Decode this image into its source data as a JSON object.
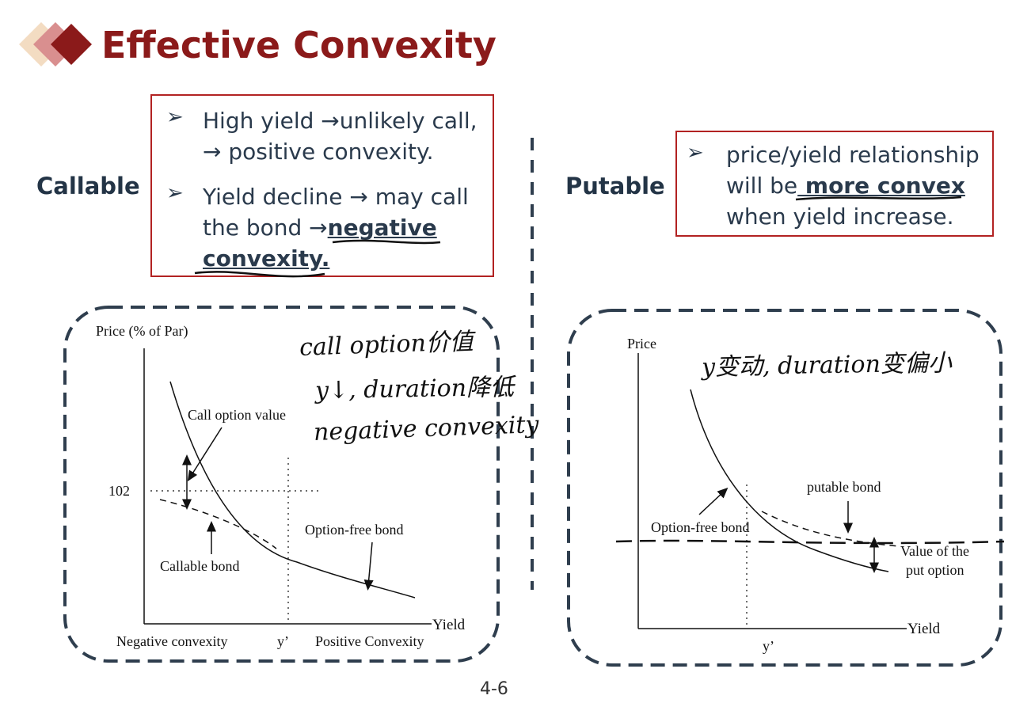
{
  "title": "Effective Convexity",
  "callable": {
    "label": "Callable",
    "bullet1": "High yield →unlikely call, → positive convexity.",
    "bullet2_text": "Yield decline → may call the bond →",
    "bullet2_emph": "negative convexity."
  },
  "putable": {
    "label": "Putable",
    "bullet_pre": "price/yield relationship will be",
    "bullet_emph": " more convex",
    "bullet_post": " when yield increase."
  },
  "callable_chart": {
    "y_axis_label": "Price (% of Par)",
    "x_axis_label": "Yield",
    "tick_102": "102",
    "label_call_option_value": "Call option value",
    "label_option_free": "Option-free bond",
    "label_callable_bond": "Callable bond",
    "label_negative_convexity": "Negative convexity",
    "label_y_prime": "y’",
    "label_positive_convexity": "Positive Convexity",
    "handwriting_line1": "call option价值",
    "handwriting_line2": "y↓, duration降低",
    "handwriting_line3": "negative convexity"
  },
  "putable_chart": {
    "y_axis_label": "Price",
    "x_axis_label": "Yield",
    "label_putable_bond": "putable bond",
    "label_option_free": "Option-free bond",
    "label_value_put_1": "Value of the",
    "label_value_put_2": "put option",
    "label_y_prime": "y’",
    "handwriting": "y变动, duration变偏小"
  },
  "footer": "4-6",
  "colors": {
    "title": "#8b1a1a",
    "box_border": "#b22222",
    "dashed": "#2f3e4e"
  }
}
